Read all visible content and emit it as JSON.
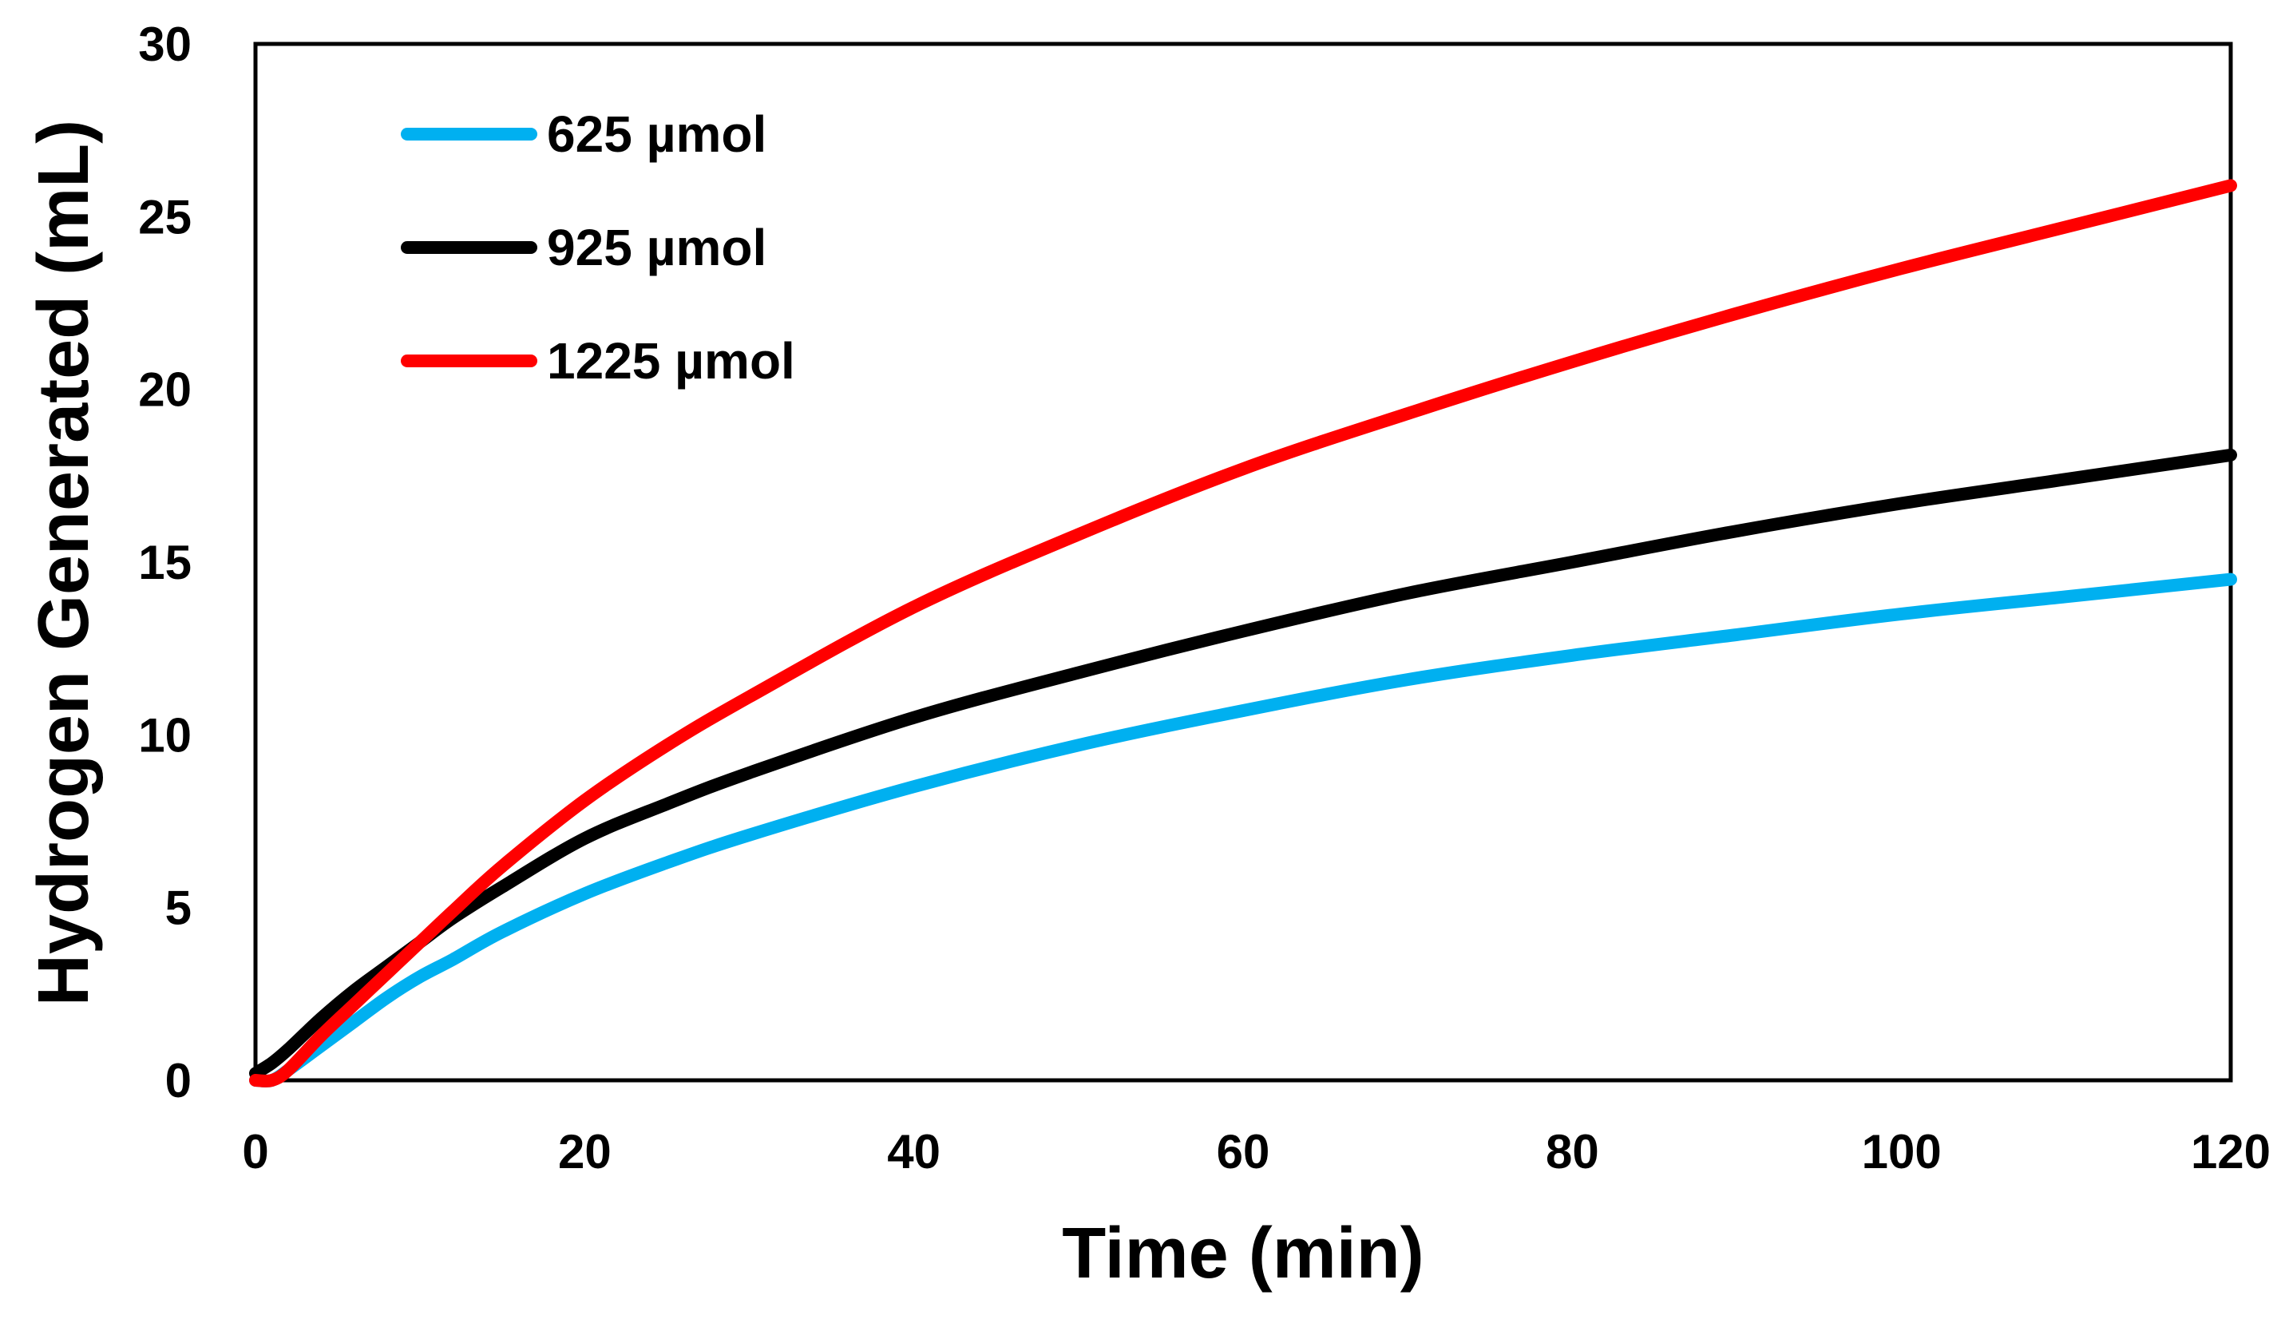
{
  "chart_data": {
    "type": "line",
    "title": "",
    "xlabel": "Time (min)",
    "ylabel": "Hydrogen Generated (mL)",
    "xlim": [
      0,
      120
    ],
    "ylim": [
      0,
      30
    ],
    "xticks": [
      0,
      20,
      40,
      60,
      80,
      100,
      120
    ],
    "yticks": [
      0,
      5,
      10,
      15,
      20,
      25,
      30
    ],
    "grid": false,
    "legend_position": "top-left",
    "series": [
      {
        "name": "625 µmol",
        "color": "#00B0F0",
        "x": [
          0,
          1,
          2,
          4,
          6,
          8,
          10,
          12,
          15,
          20,
          25,
          30,
          40,
          50,
          60,
          70,
          80,
          90,
          100,
          110,
          120
        ],
        "y": [
          0,
          0,
          0.3,
          1.0,
          1.7,
          2.4,
          3.0,
          3.5,
          4.3,
          5.4,
          6.3,
          7.1,
          8.5,
          9.7,
          10.7,
          11.6,
          12.3,
          12.9,
          13.5,
          14.0,
          14.5
        ]
      },
      {
        "name": "925 µmol",
        "color": "#000000",
        "x": [
          0,
          1,
          2,
          4,
          6,
          8,
          10,
          12,
          15,
          20,
          25,
          30,
          40,
          50,
          60,
          70,
          80,
          90,
          100,
          110,
          120
        ],
        "y": [
          0.2,
          0.5,
          0.9,
          1.8,
          2.6,
          3.3,
          4.0,
          4.7,
          5.6,
          7.0,
          8.0,
          8.9,
          10.5,
          11.8,
          13.0,
          14.1,
          15.0,
          15.9,
          16.7,
          17.4,
          18.1
        ]
      },
      {
        "name": "1225 µmol",
        "color": "#FF0000",
        "x": [
          0,
          1,
          2,
          4,
          6,
          8,
          10,
          12,
          15,
          20,
          25,
          30,
          40,
          50,
          60,
          70,
          80,
          90,
          100,
          110,
          120
        ],
        "y": [
          0,
          0,
          0.3,
          1.3,
          2.2,
          3.1,
          4.0,
          4.9,
          6.2,
          8.1,
          9.7,
          11.1,
          13.7,
          15.8,
          17.7,
          19.3,
          20.8,
          22.2,
          23.5,
          24.7,
          25.9
        ]
      }
    ]
  }
}
